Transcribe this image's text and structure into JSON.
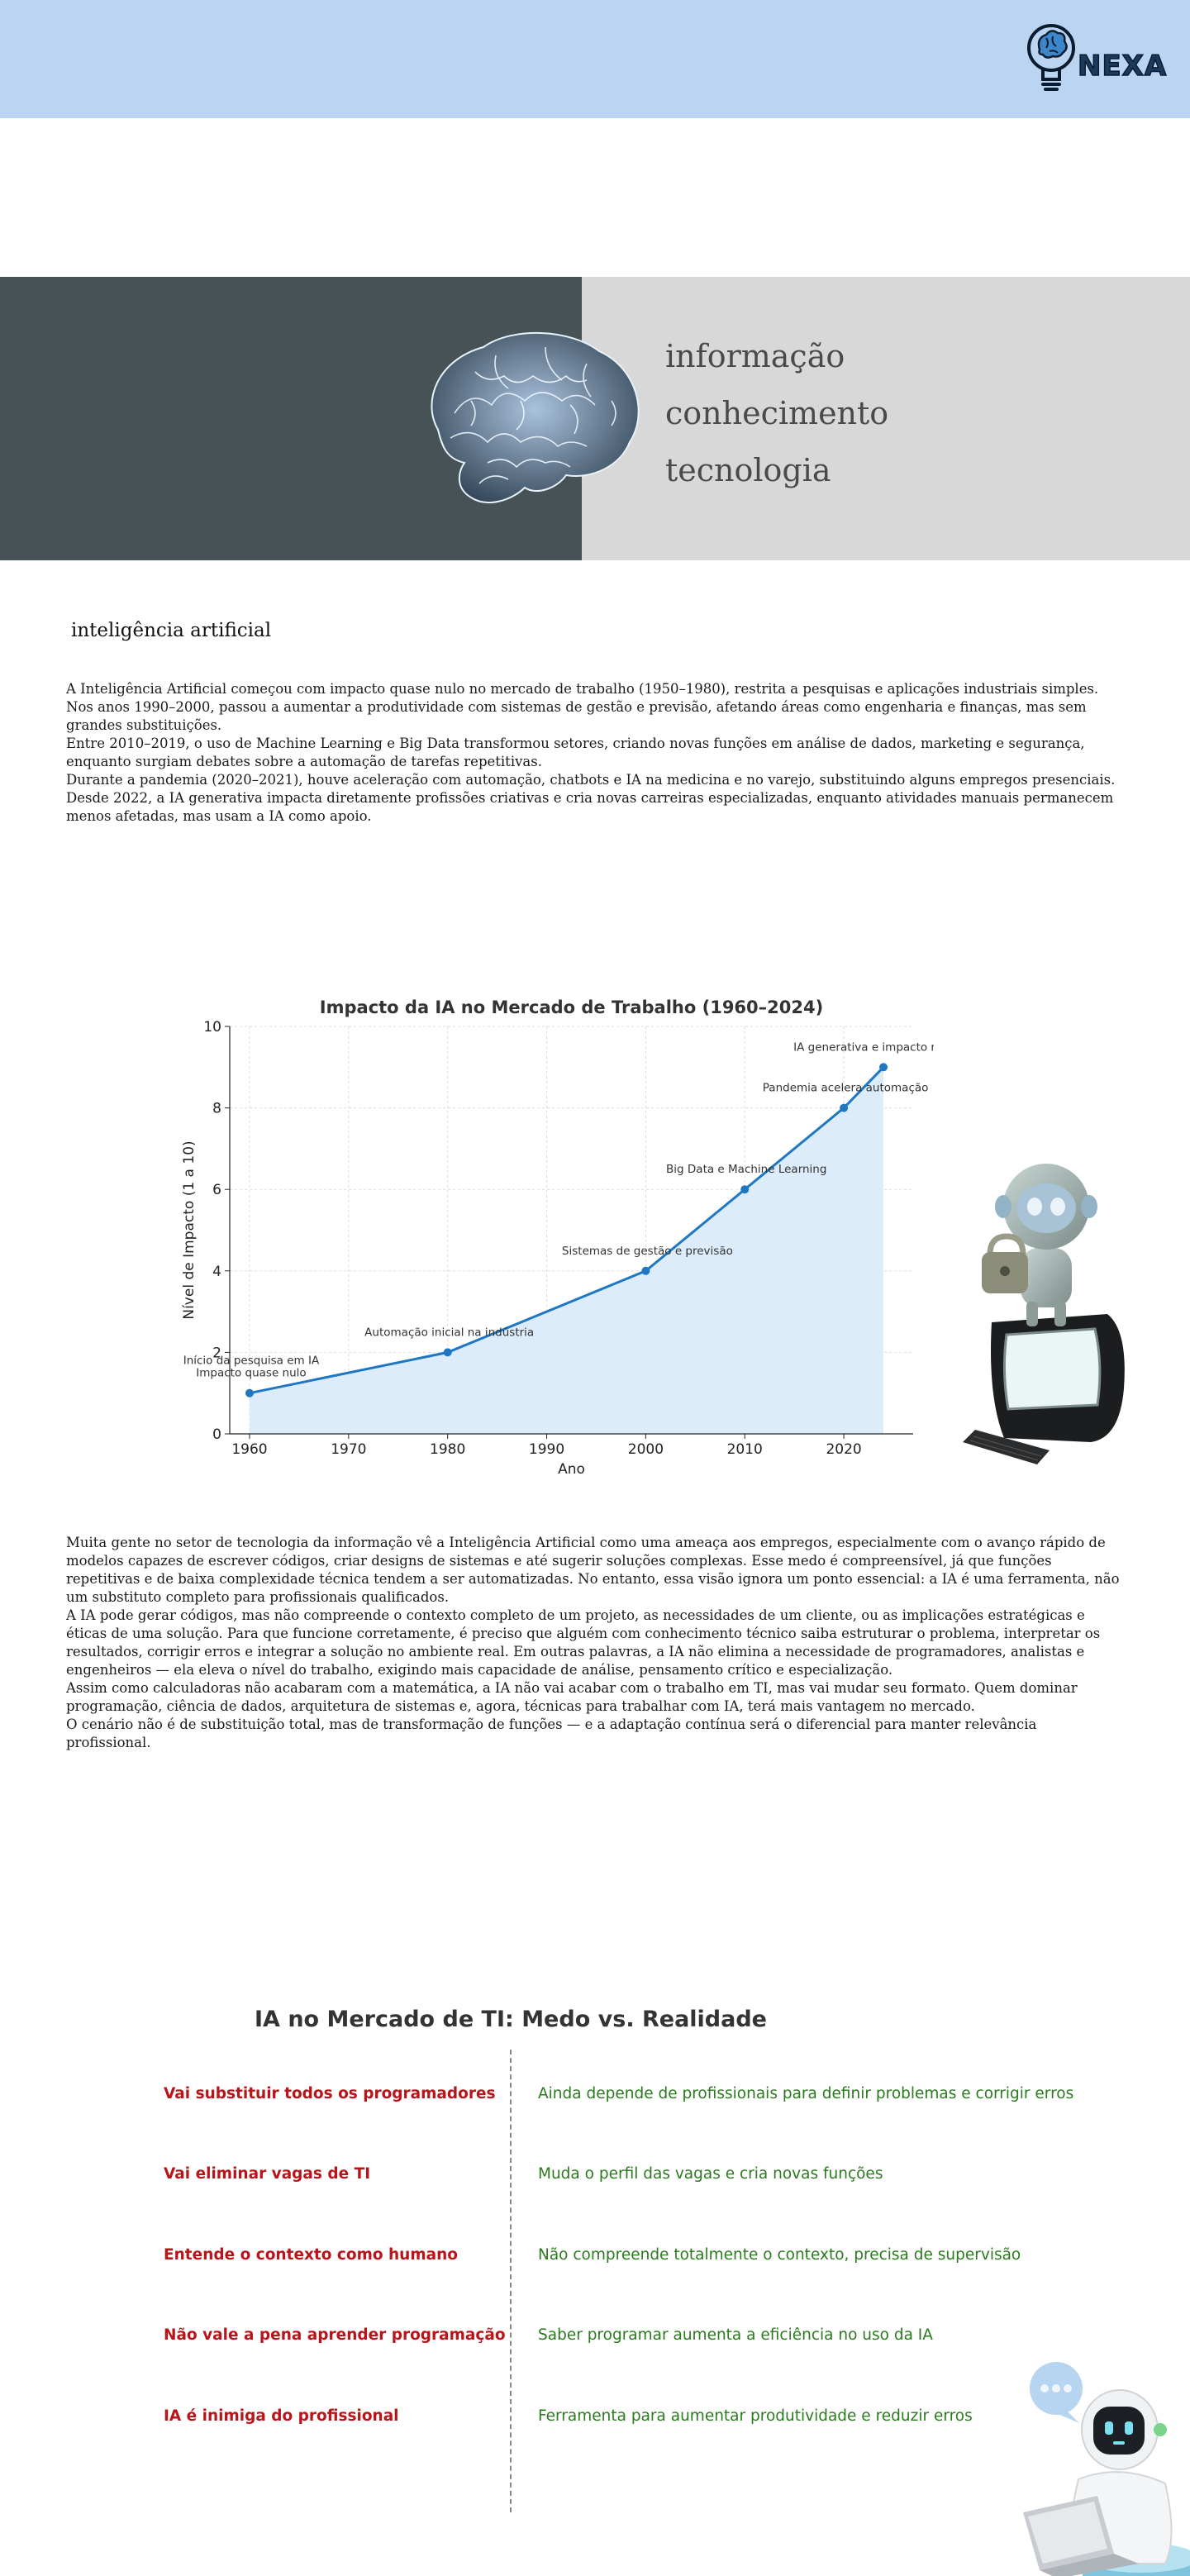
{
  "header": {
    "logo_text": "NEXA"
  },
  "hero": {
    "words": [
      "informação",
      "conhecimento",
      "tecnologia"
    ]
  },
  "section": {
    "title": "inteligência artificial"
  },
  "intro_paragraphs": [
    "A Inteligência Artificial começou com impacto quase nulo no mercado de trabalho (1950–1980), restrita a pesquisas e aplicações industriais simples.",
    " Nos anos 1990–2000, passou a aumentar a produtividade com sistemas de gestão e previsão, afetando áreas como engenharia e finanças, mas sem grandes substituições.",
    " Entre 2010–2019, o uso de Machine Learning e Big Data transformou setores, criando novas funções em análise de dados, marketing e segurança, enquanto surgiam debates sobre a automação de tarefas repetitivas.",
    " Durante a pandemia (2020–2021), houve aceleração com automação, chatbots e IA na medicina e no varejo, substituindo alguns empregos presenciais.",
    " Desde 2022, a IA generativa impacta diretamente profissões criativas e cria novas carreiras especializadas, enquanto atividades manuais permanecem menos afetadas, mas usam a IA como apoio."
  ],
  "chart_data": {
    "type": "line",
    "title": "Impacto da IA no Mercado de Trabalho (1960–2024)",
    "xlabel": "Ano",
    "ylabel": "Nível de Impacto (1 a 10)",
    "xlim": [
      1958,
      2027
    ],
    "ylim": [
      0,
      10
    ],
    "xticks": [
      1960,
      1970,
      1980,
      1990,
      2000,
      2010,
      2020
    ],
    "yticks": [
      0,
      2,
      4,
      6,
      8,
      10
    ],
    "grid": true,
    "fill_under": true,
    "colors": {
      "line": "#1f77c4",
      "fill": "#dcecfb",
      "grid": "#dddddd"
    },
    "x": [
      1960,
      1980,
      2000,
      2010,
      2020,
      2024
    ],
    "y": [
      1,
      2,
      4,
      6,
      8,
      9
    ],
    "annotations": [
      {
        "x": 1960,
        "y": 1,
        "text": [
          "Início da pesquisa em IA",
          "Impacto quase nulo"
        ]
      },
      {
        "x": 1980,
        "y": 2,
        "text": [
          "Automação inicial na indústria"
        ]
      },
      {
        "x": 2000,
        "y": 4,
        "text": [
          "Sistemas de gestão e previsão"
        ]
      },
      {
        "x": 2010,
        "y": 6,
        "text": [
          "Big Data e Machine Learning"
        ]
      },
      {
        "x": 2020,
        "y": 8,
        "text": [
          "Pandemia acelera automação"
        ]
      },
      {
        "x": 2024,
        "y": 9,
        "text": [
          "IA generativa e impacto massivo"
        ]
      }
    ]
  },
  "body_paragraphs": [
    "Muita gente no setor de tecnologia da informação vê a Inteligência Artificial como uma ameaça aos empregos, especialmente com o avanço rápido de modelos capazes de escrever códigos, criar designs de sistemas e até sugerir soluções complexas. Esse medo é compreensível, já que funções repetitivas e de baixa complexidade técnica tendem a ser automatizadas. No entanto, essa visão ignora um ponto essencial: a IA é uma ferramenta, não um substituto completo para profissionais qualificados.",
    "A IA pode gerar códigos, mas não compreende o contexto completo de um projeto, as necessidades de um cliente, ou as implicações estratégicas e éticas de uma solução. Para que funcione corretamente, é preciso que alguém com conhecimento técnico saiba estruturar o problema, interpretar os resultados, corrigir erros e integrar a solução no ambiente real. Em outras palavras, a IA não elimina a necessidade de programadores, analistas e engenheiros — ela eleva o nível do trabalho, exigindo mais capacidade de análise, pensamento crítico e especialização.",
    "Assim como calculadoras não acabaram com a matemática, a IA não vai acabar com o trabalho em TI, mas vai mudar seu formato. Quem dominar programação, ciência de dados, arquitetura de sistemas e, agora, técnicas para trabalhar com IA, terá mais vantagem no mercado.",
    " O cenário não é de substituição total, mas de transformação de funções — e a adaptação contínua será o diferencial para manter relevância profissional."
  ],
  "fear_vs_reality": {
    "title": "IA no Mercado de TI: Medo vs. Realidade",
    "colors": {
      "myth": "#b8141a",
      "reality": "#2a7a1e"
    },
    "rows": [
      {
        "myth": "Vai substituir todos os programadores",
        "reality": "Ainda depende de profissionais para definir problemas e corrigir erros"
      },
      {
        "myth": "Vai eliminar vagas de TI",
        "reality": "Muda o perfil das vagas e cria novas funções"
      },
      {
        "myth": "Entende o contexto como humano",
        "reality": "Não compreende totalmente o contexto, precisa de supervisão"
      },
      {
        "myth": "Não vale a pena aprender programação",
        "reality": "Saber programar aumenta a eficiência no uso da IA"
      },
      {
        "myth": "IA é inimiga do profissional",
        "reality": "Ferramenta para aumentar produtividade e reduzir erros"
      }
    ]
  }
}
